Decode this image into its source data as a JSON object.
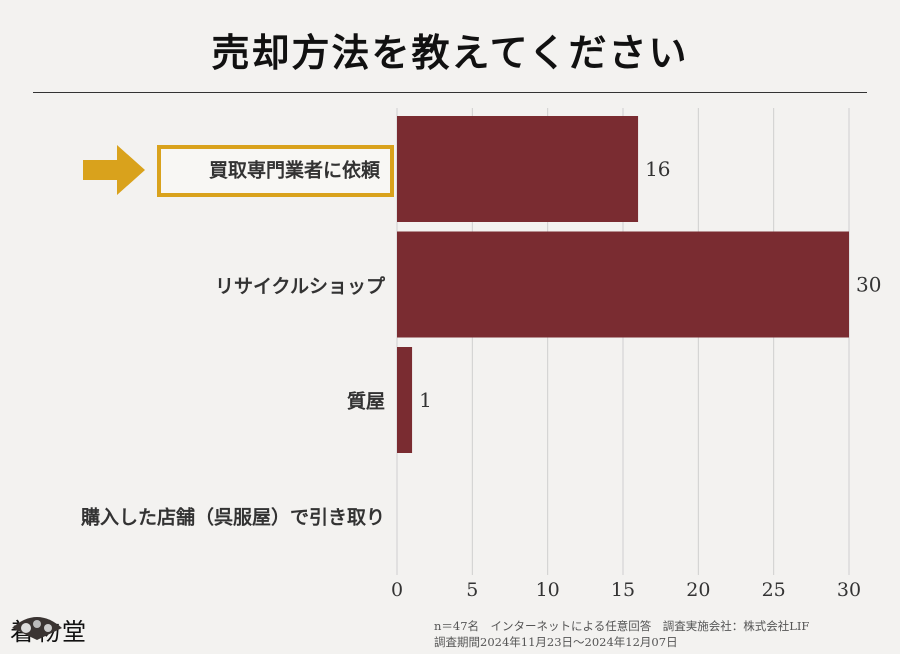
{
  "title": "売却方法を教えてください",
  "chart_data": {
    "type": "bar",
    "orientation": "horizontal",
    "title": "売却方法を教えてください",
    "categories": [
      "買取専門業者に依頼",
      "リサイクルショップ",
      "質屋",
      "購入した店舗（呉服屋）で引き取り"
    ],
    "values": [
      16,
      30,
      1,
      0
    ],
    "xlim": [
      0,
      30
    ],
    "xticks": [
      0,
      5,
      10,
      15,
      20,
      25,
      30
    ],
    "xlabel": "",
    "ylabel": "",
    "grid": "vertical",
    "highlighted": "買取専門業者に依頼",
    "bar_color": "#7a2c31",
    "highlight_color": "#d9a21c"
  },
  "footer": {
    "line1": "n＝47名　インターネットによる任意回答　調査実施会社：株式会社LIF",
    "line2": "調査期間2024年11月23日～2024年12月07日"
  },
  "logo": {
    "text": "着物堂"
  }
}
